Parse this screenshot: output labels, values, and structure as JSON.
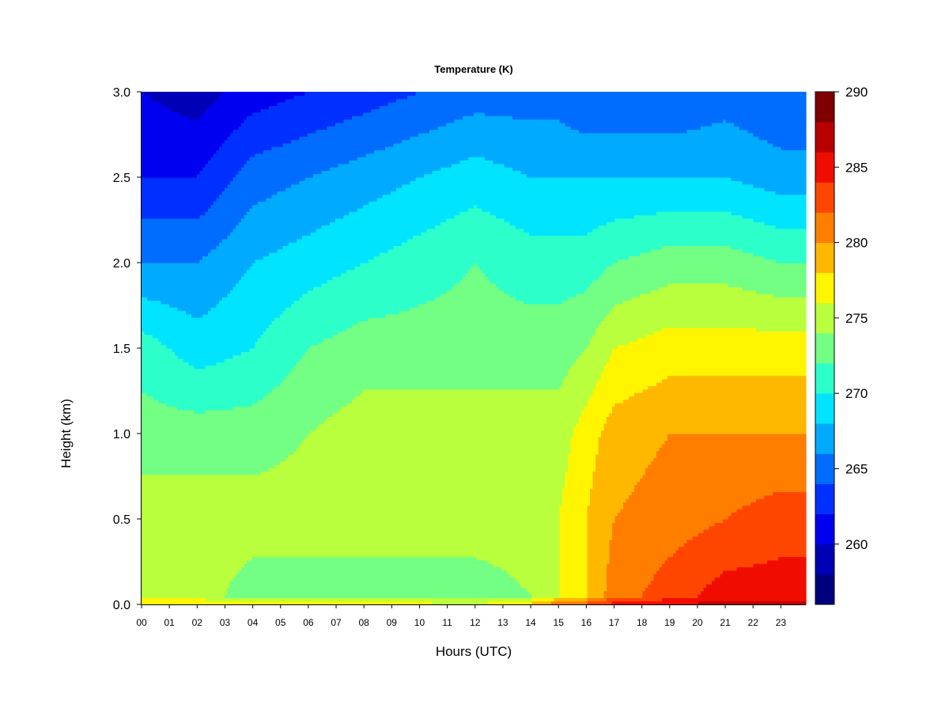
{
  "chart_data": {
    "type": "heatmap",
    "title": "Temperature (K)",
    "xlabel": "Hours (UTC)",
    "ylabel": "Height (km)",
    "x_ticks": [
      "00",
      "01",
      "02",
      "03",
      "04",
      "05",
      "06",
      "07",
      "08",
      "09",
      "10",
      "11",
      "12",
      "13",
      "14",
      "15",
      "16",
      "17",
      "18",
      "19",
      "20",
      "21",
      "22",
      "23"
    ],
    "y_ticks": [
      "0.0",
      "0.5",
      "1.0",
      "1.5",
      "2.0",
      "2.5",
      "3.0"
    ],
    "xlim": [
      0,
      23.9
    ],
    "ylim": [
      0,
      3.0
    ],
    "colorbar": {
      "min": 256,
      "max": 290,
      "tick_values": [
        260,
        265,
        270,
        275,
        280,
        285,
        290
      ],
      "tick_labels": [
        "260",
        "265",
        "270",
        "275",
        "280",
        "285",
        "290"
      ],
      "colors": [
        "#00007F",
        "#0000B6",
        "#0000F1",
        "#0030FF",
        "#006DFF",
        "#00AAFF",
        "#00E4FF",
        "#2CFFCA",
        "#72FF84",
        "#B9FF3D",
        "#FFF500",
        "#FFB800",
        "#FF7E00",
        "#FF4600",
        "#F10C00",
        "#B90000",
        "#7F0000"
      ]
    },
    "profiles": [
      {
        "hour": 0,
        "height_km": [
          0,
          0.05,
          0.5,
          1.0,
          1.5,
          2.0,
          2.5,
          3.0
        ],
        "temperature_K": [
          278,
          275,
          275,
          273,
          271,
          266,
          262,
          260
        ]
      },
      {
        "hour": 2,
        "height_km": [
          0,
          0.05,
          0.5,
          1.0,
          1.5,
          2.0,
          2.5,
          3.0
        ],
        "temperature_K": [
          278,
          275,
          275,
          273,
          269,
          266,
          262,
          259
        ]
      },
      {
        "hour": 4,
        "height_km": [
          0,
          0.05,
          0.5,
          1.0,
          1.5,
          2.0,
          2.5,
          3.0
        ],
        "temperature_K": [
          278,
          273,
          275,
          273,
          270,
          268,
          265,
          261
        ]
      },
      {
        "hour": 6,
        "height_km": [
          0,
          0.05,
          0.5,
          1.0,
          1.5,
          2.0,
          2.5,
          3.0
        ],
        "temperature_K": [
          278,
          273,
          275,
          274,
          272,
          269,
          266,
          262
        ]
      },
      {
        "hour": 8,
        "height_km": [
          0,
          0.05,
          0.5,
          1.0,
          1.5,
          2.0,
          2.5,
          3.0
        ],
        "temperature_K": [
          278,
          273,
          275,
          275,
          273,
          270,
          267,
          263
        ]
      },
      {
        "hour": 10,
        "height_km": [
          0,
          0.05,
          0.5,
          1.0,
          1.5,
          2.0,
          2.5,
          3.0
        ],
        "temperature_K": [
          277,
          273,
          275,
          275,
          273,
          271,
          268,
          264
        ]
      },
      {
        "hour": 12,
        "height_km": [
          0,
          0.05,
          0.5,
          1.0,
          1.5,
          2.0,
          2.5,
          3.0
        ],
        "temperature_K": [
          276,
          273,
          275,
          275,
          273,
          272,
          269,
          265
        ]
      },
      {
        "hour": 14,
        "height_km": [
          0,
          0.05,
          0.5,
          1.0,
          1.5,
          2.0,
          2.5,
          3.0
        ],
        "temperature_K": [
          279,
          274,
          275,
          275,
          273,
          271,
          268,
          265
        ]
      },
      {
        "hour": 15,
        "height_km": [
          0,
          0.05,
          0.5,
          1.0,
          1.5,
          2.0,
          2.5,
          3.0
        ],
        "temperature_K": [
          282,
          276,
          276,
          275,
          273,
          271,
          268,
          265
        ]
      },
      {
        "hour": 16,
        "height_km": [
          0,
          0.05,
          0.5,
          1.0,
          1.5,
          2.0,
          2.5,
          3.0
        ],
        "temperature_K": [
          283,
          278,
          278,
          277,
          274,
          271,
          268,
          264
        ]
      },
      {
        "hour": 17,
        "height_km": [
          0,
          0.05,
          0.5,
          1.0,
          1.5,
          2.0,
          2.5,
          3.0
        ],
        "temperature_K": [
          285,
          281,
          280,
          279,
          276,
          272,
          268,
          264
        ]
      },
      {
        "hour": 19,
        "height_km": [
          0,
          0.05,
          0.5,
          1.0,
          1.5,
          2.0,
          2.5,
          3.0
        ],
        "temperature_K": [
          286,
          283,
          281,
          280,
          277,
          273,
          268,
          264
        ]
      },
      {
        "hour": 21,
        "height_km": [
          0,
          0.05,
          0.5,
          1.0,
          1.5,
          2.0,
          2.5,
          3.0
        ],
        "temperature_K": [
          287,
          285,
          282,
          280,
          277,
          273,
          268,
          265
        ]
      },
      {
        "hour": 23,
        "height_km": [
          0,
          0.05,
          0.5,
          1.0,
          1.5,
          2.0,
          2.5,
          3.0
        ],
        "temperature_K": [
          287,
          285,
          283,
          280,
          277,
          272,
          267,
          264
        ]
      }
    ]
  }
}
